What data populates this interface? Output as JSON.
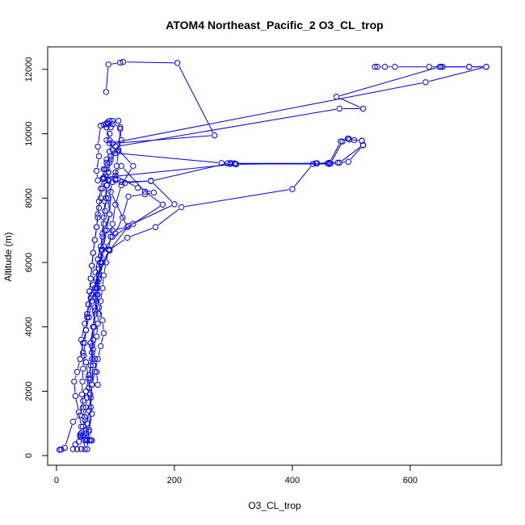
{
  "chart_data": {
    "type": "line",
    "title": "ATOM4 Northeast_Pacific_2 O3_CL_trop",
    "xlabel": "O3_CL_trop",
    "ylabel": "Altitude (m)",
    "xlim": [
      -15,
      755
    ],
    "ylim": [
      -300,
      12700
    ],
    "xticks": [
      0,
      200,
      400,
      600
    ],
    "yticks": [
      0,
      2000,
      4000,
      6000,
      8000,
      10000,
      12000
    ],
    "markers": "open-circle",
    "series_color": "#0000ff",
    "grid": false,
    "legend": "none",
    "series": [
      {
        "points": [
          [
            5,
            180
          ],
          [
            8,
            190
          ],
          [
            14,
            240
          ],
          [
            28,
            1050
          ],
          [
            40,
            1250
          ],
          [
            45,
            1700
          ],
          [
            50,
            2000
          ],
          [
            55,
            2500
          ],
          [
            60,
            3000
          ],
          [
            58,
            3500
          ],
          [
            62,
            4000
          ],
          [
            65,
            4500
          ],
          [
            70,
            5000
          ],
          [
            72,
            5500
          ],
          [
            75,
            6000
          ],
          [
            80,
            6500
          ],
          [
            85,
            7000
          ],
          [
            90,
            7500
          ],
          [
            88,
            8000
          ],
          [
            95,
            8500
          ],
          [
            100,
            8800
          ],
          [
            110,
            9000
          ],
          [
            150,
            8200
          ],
          [
            180,
            7800
          ],
          [
            130,
            7200
          ],
          [
            95,
            6800
          ],
          [
            75,
            6200
          ],
          [
            72,
            5800
          ],
          [
            70,
            5400
          ],
          [
            68,
            5000
          ],
          [
            72,
            4600
          ],
          [
            78,
            4200
          ],
          [
            80,
            3800
          ],
          [
            75,
            3400
          ],
          [
            70,
            3000
          ],
          [
            65,
            2600
          ],
          [
            60,
            2200
          ],
          [
            58,
            1800
          ],
          [
            55,
            1400
          ],
          [
            52,
            1000
          ],
          [
            50,
            700
          ],
          [
            48,
            480
          ],
          [
            52,
            470
          ],
          [
            58,
            480
          ],
          [
            55,
            750
          ],
          [
            60,
            1300
          ],
          [
            57,
            1900
          ],
          [
            54,
            2400
          ],
          [
            50,
            2900
          ],
          [
            45,
            3200
          ],
          [
            42,
            3600
          ],
          [
            48,
            4100
          ],
          [
            52,
            4400
          ],
          [
            58,
            4900
          ],
          [
            62,
            5300
          ],
          [
            66,
            5700
          ],
          [
            70,
            6100
          ],
          [
            75,
            6500
          ],
          [
            78,
            6900
          ],
          [
            80,
            7400
          ],
          [
            82,
            7900
          ],
          [
            85,
            8400
          ],
          [
            88,
            8800
          ],
          [
            92,
            9200
          ],
          [
            95,
            9500
          ],
          [
            90,
            9800
          ],
          [
            85,
            10200
          ],
          [
            88,
            10300
          ],
          [
            95,
            10400
          ],
          [
            105,
            10400
          ],
          [
            108,
            10150
          ],
          [
            105,
            9450
          ],
          [
            102,
            9000
          ],
          [
            100,
            8600
          ],
          [
            110,
            8500
          ],
          [
            160,
            8530
          ],
          [
            290,
            9080
          ],
          [
            295,
            9090
          ],
          [
            302,
            9080
          ],
          [
            440,
            9080
          ],
          [
            460,
            9080
          ],
          [
            480,
            9100
          ],
          [
            520,
            9650
          ],
          [
            518,
            9780
          ],
          [
            505,
            9800
          ],
          [
            495,
            9850
          ],
          [
            485,
            9760
          ],
          [
            465,
            9080
          ],
          [
            435,
            9060
          ],
          [
            400,
            8280
          ],
          [
            212,
            7720
          ],
          [
            168,
            7100
          ],
          [
            120,
            6770
          ],
          [
            90,
            6400
          ],
          [
            78,
            6000
          ],
          [
            72,
            5600
          ],
          [
            65,
            5200
          ],
          [
            60,
            4800
          ],
          [
            55,
            4300
          ],
          [
            50,
            3900
          ],
          [
            45,
            3500
          ],
          [
            40,
            3000
          ],
          [
            35,
            2600
          ],
          [
            30,
            2300
          ],
          [
            32,
            1850
          ],
          [
            38,
            1350
          ],
          [
            42,
            900
          ],
          [
            40,
            650
          ],
          [
            42,
            600
          ],
          [
            38,
            430
          ],
          [
            32,
            350
          ],
          [
            28,
            200
          ],
          [
            35,
            200
          ],
          [
            42,
            205
          ],
          [
            48,
            200
          ],
          [
            45,
            630
          ]
        ]
      },
      {
        "points": [
          [
            52,
            200
          ],
          [
            55,
            800
          ],
          [
            58,
            1500
          ],
          [
            60,
            2200
          ],
          [
            62,
            2800
          ],
          [
            60,
            3400
          ],
          [
            62,
            4000
          ],
          [
            65,
            4600
          ],
          [
            68,
            5200
          ],
          [
            72,
            5800
          ],
          [
            78,
            6400
          ],
          [
            82,
            7000
          ],
          [
            90,
            7500
          ],
          [
            92,
            8200
          ],
          [
            120,
            7100
          ],
          [
            95,
            7000
          ],
          [
            100,
            6900
          ],
          [
            112,
            7400
          ],
          [
            122,
            8050
          ],
          [
            150,
            8120
          ],
          [
            165,
            8170
          ],
          [
            138,
            8320
          ],
          [
            100,
            8700
          ],
          [
            88,
            8580
          ],
          [
            85,
            8900
          ],
          [
            90,
            9100
          ],
          [
            100,
            9400
          ],
          [
            280,
            9090
          ],
          [
            295,
            9060
          ],
          [
            305,
            9050
          ],
          [
            442,
            9080
          ],
          [
            463,
            9100
          ],
          [
            477,
            9100
          ],
          [
            495,
            9130
          ],
          [
            520,
            9640
          ],
          [
            518,
            9780
          ],
          [
            497,
            9820
          ],
          [
            494,
            9850
          ],
          [
            482,
            9760
          ],
          [
            462,
            9060
          ],
          [
            303,
            9060
          ],
          [
            80,
            8640
          ],
          [
            88,
            8540
          ],
          [
            100,
            8560
          ],
          [
            116,
            8470
          ],
          [
            160,
            8540
          ],
          [
            200,
            7810
          ],
          [
            122,
            7140
          ],
          [
            90,
            6370
          ],
          [
            72,
            5650
          ],
          [
            60,
            5000
          ],
          [
            52,
            4400
          ]
        ]
      },
      {
        "points": [
          [
            70,
            2200
          ],
          [
            68,
            2600
          ],
          [
            65,
            3000
          ],
          [
            62,
            3300
          ],
          [
            68,
            3700
          ],
          [
            70,
            4100
          ],
          [
            72,
            4400
          ],
          [
            75,
            4800
          ],
          [
            78,
            5200
          ],
          [
            80,
            5600
          ],
          [
            84,
            6000
          ],
          [
            88,
            6400
          ],
          [
            92,
            6800
          ],
          [
            95,
            7200
          ],
          [
            100,
            7800
          ],
          [
            110,
            8400
          ],
          [
            130,
            9000
          ],
          [
            100,
            9600
          ],
          [
            480,
            10780
          ],
          [
            520,
            10780
          ],
          [
            475,
            11150
          ],
          [
            650,
            12080
          ],
          [
            700,
            12080
          ],
          [
            729,
            12080
          ],
          [
            626,
            11600
          ],
          [
            90,
            9700
          ],
          [
            85,
            9800
          ],
          [
            90,
            10000
          ],
          [
            92,
            10200
          ],
          [
            95,
            10300
          ],
          [
            108,
            10200
          ],
          [
            110,
            9800
          ],
          [
            105,
            9500
          ],
          [
            92,
            9300
          ],
          [
            85,
            9100
          ],
          [
            82,
            8900
          ],
          [
            80,
            8600
          ],
          [
            78,
            8300
          ],
          [
            75,
            8000
          ],
          [
            72,
            7700
          ],
          [
            70,
            7400
          ],
          [
            68,
            7100
          ],
          [
            65,
            6700
          ],
          [
            62,
            6300
          ],
          [
            60,
            5900
          ],
          [
            58,
            5500
          ],
          [
            56,
            5100
          ],
          [
            54,
            4700
          ],
          [
            52,
            4300
          ],
          [
            50,
            3900
          ]
        ]
      },
      {
        "points": [
          [
            84,
            11300
          ],
          [
            88,
            12150
          ],
          [
            108,
            12210
          ],
          [
            113,
            12230
          ],
          [
            205,
            12200
          ],
          [
            268,
            9950
          ],
          [
            95,
            9700
          ],
          [
            90,
            9450
          ],
          [
            85,
            9200
          ],
          [
            80,
            8900
          ],
          [
            78,
            8600
          ],
          [
            75,
            8300
          ],
          [
            72,
            7900
          ],
          [
            70,
            7500
          ],
          [
            68,
            7100
          ],
          [
            65,
            6700
          ],
          [
            62,
            6300
          ],
          [
            60,
            5900
          ],
          [
            58,
            5500
          ],
          [
            56,
            5100
          ],
          [
            54,
            4700
          ],
          [
            52,
            4300
          ],
          [
            50,
            3900
          ],
          [
            48,
            3500
          ],
          [
            46,
            3100
          ],
          [
            45,
            2700
          ],
          [
            44,
            2300
          ],
          [
            43,
            1900
          ],
          [
            45,
            1500
          ],
          [
            48,
            1100
          ],
          [
            50,
            800
          ],
          [
            52,
            500
          ],
          [
            56,
            470
          ],
          [
            60,
            470
          ]
        ]
      },
      {
        "points": [
          [
            540,
            12080
          ],
          [
            544,
            12080
          ],
          [
            557,
            12080
          ],
          [
            574,
            12080
          ],
          [
            632,
            12080
          ],
          [
            652,
            12080
          ],
          [
            655,
            12080
          ],
          [
            700,
            12080
          ],
          [
            729,
            12080
          ]
        ]
      },
      {
        "points": [
          [
            40,
            600
          ],
          [
            42,
            700
          ],
          [
            45,
            900
          ],
          [
            48,
            1200
          ],
          [
            50,
            1500
          ],
          [
            52,
            1800
          ],
          [
            55,
            2100
          ],
          [
            57,
            2400
          ],
          [
            58,
            2800
          ],
          [
            60,
            3200
          ],
          [
            62,
            3600
          ],
          [
            64,
            4000
          ],
          [
            66,
            4400
          ],
          [
            68,
            4800
          ],
          [
            70,
            5200
          ],
          [
            72,
            5600
          ],
          [
            74,
            6000
          ],
          [
            76,
            6400
          ],
          [
            78,
            6800
          ],
          [
            80,
            7200
          ],
          [
            82,
            7600
          ],
          [
            84,
            8000
          ],
          [
            86,
            8400
          ],
          [
            88,
            8800
          ],
          [
            70,
            8550
          ],
          [
            68,
            8850
          ],
          [
            72,
            9300
          ],
          [
            70,
            9600
          ],
          [
            75,
            10250
          ],
          [
            80,
            10280
          ],
          [
            84,
            10300
          ],
          [
            86,
            10350
          ],
          [
            90,
            10400
          ]
        ]
      }
    ]
  }
}
